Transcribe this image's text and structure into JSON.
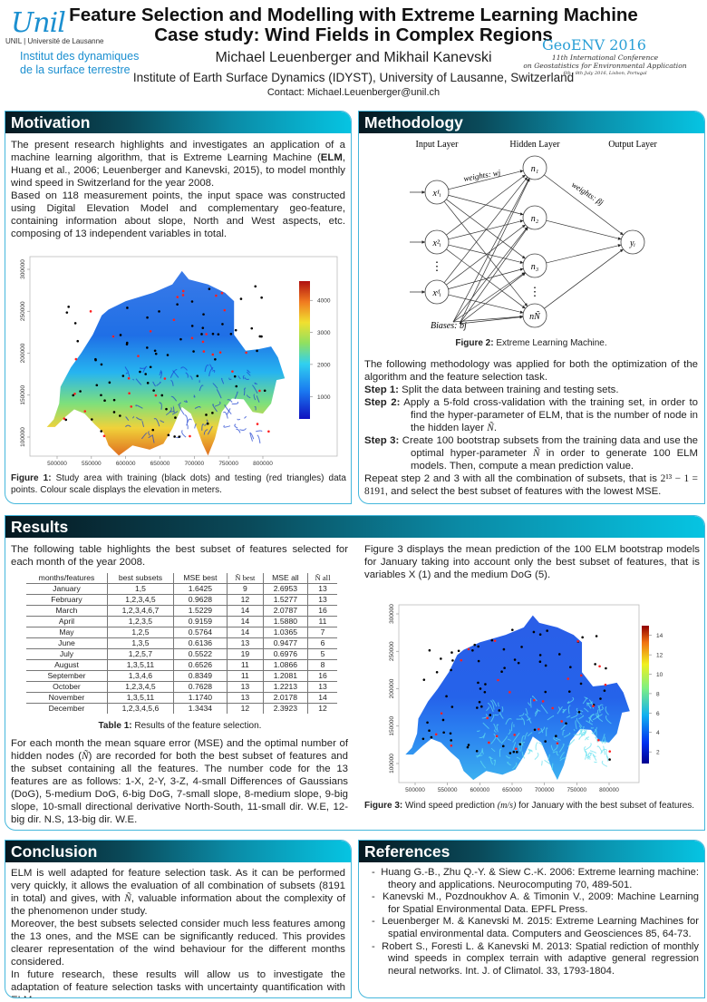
{
  "header": {
    "title_line1": "Feature Selection and Modelling with Extreme Learning Machine",
    "title_line2": "Case study: Wind Fields in Complex Regions",
    "authors": "Michael Leuenberger and Mikhail Kanevski",
    "affiliation": "Institute of Earth Surface Dynamics (IDYST), University of Lausanne, Switzerland",
    "contact": "Contact:  Michael.Leuenberger@unil.ch",
    "logo_left": {
      "wordmark": "Unil",
      "subline": "UNIL | Université de Lausanne",
      "institute_line1": "Institut des dynamiques",
      "institute_line2": "de la surface terrestre"
    },
    "logo_right": {
      "title": "GeoENV 2016",
      "line1": "11th International Conference",
      "line2": "on Geostatistics for Environmental Application",
      "dates": "6th - 8th July 2016, Lisbon, Portugal"
    }
  },
  "colors": {
    "header_gradient_start": "#061820",
    "header_gradient_end": "#06c4e2",
    "box_border": "#45b7dc",
    "institute_blue": "#1b8fd0",
    "train_points": "#000000",
    "test_points": "#ff2020"
  },
  "motivation": {
    "title": "Motivation",
    "p1_a": "The present research highlights and investigates an application of a machine learning algorithm, that is Extreme Learning Machine (",
    "p1_bold": "ELM",
    "p1_b": ", Huang et al., 2006; Leuenberger and Kanevski, 2015), to model monthly wind speed in Switzerland for the year 2008.",
    "p2": "Based on 118 measurement points, the input space was constructed using Digital Elevation Model and complementary geo-feature, containing information about slope, North and West aspects, etc. composing of 13 independent variables in total.",
    "figure": {
      "x_ticks": [
        "500000",
        "550000",
        "600000",
        "650000",
        "700000",
        "750000",
        "800000"
      ],
      "y_ticks": [
        "100000",
        "150000",
        "200000",
        "250000",
        "300000"
      ],
      "colorbar_ticks": [
        "1000",
        "2000",
        "3000",
        "4000"
      ],
      "colorbar_range": [
        300,
        4600
      ]
    },
    "caption_label": "Figure 1:",
    "caption_text": " Study area with training (black dots) and testing (red triangles) data points. Colour scale displays the elevation in meters."
  },
  "methodology": {
    "title": "Methodology",
    "diagram": {
      "input_layer": "Input Layer",
      "hidden_layer": "Hidden Layer",
      "output_layer": "Output Layer",
      "weights_w": "weights: wj",
      "weights_beta": "weights: βj",
      "biases": "Biases: bj",
      "inputs": [
        "x¹ᵢ",
        "x²ᵢ",
        "xᵈᵢ"
      ],
      "hidden": [
        "n₁",
        "n₂",
        "n₃",
        "nÑ"
      ],
      "output": "yᵢ",
      "ellipsis": "⋮"
    },
    "caption_label": "Figure 2:",
    "caption_text": " Extreme Learning Machine.",
    "intro": "The following methodology was applied for both the optimization of the algorithm and the feature selection task.",
    "steps": [
      {
        "label": "Step 1:",
        "text": " Split the data between training and testing sets."
      },
      {
        "label": "Step 2:",
        "text": " Apply a 5-fold cross-validation with the training set, in order to find the hyper-parameter of ELM, that is the number of node in the hidden layer ",
        "math": "Ñ",
        "tail": "."
      },
      {
        "label": "Step 3:",
        "text": " Create 100 bootstrap subsets from the training data and use the optimal hyper-parameter ",
        "math": "Ñ",
        "tail": " in order to generate 100 ELM models. Then, compute a mean prediction value."
      }
    ],
    "outro_a": "Repeat step 2 and 3 with all the combination of subsets, that is ",
    "outro_math": "2¹³ − 1 = 8191",
    "outro_b": ", and select the best subset of features with the lowest MSE."
  },
  "results": {
    "title": "Results",
    "intro": "The following table highlights the best subset of features selected for each month of the year 2008.",
    "table": {
      "headers": [
        "months/features",
        "best subsets",
        "MSE best",
        "Ñ best",
        "MSE all",
        "Ñ all"
      ],
      "rows": [
        [
          "January",
          "1,5",
          "1.6425",
          "9",
          "2.6953",
          "13"
        ],
        [
          "February",
          "1,2,3,4,5",
          "0.9628",
          "12",
          "1.5277",
          "13"
        ],
        [
          "March",
          "1,2,3,4,6,7",
          "1.5229",
          "14",
          "2.0787",
          "16"
        ],
        [
          "April",
          "1,2,3,5",
          "0.9159",
          "14",
          "1.5880",
          "11"
        ],
        [
          "May",
          "1,2,5",
          "0.5764",
          "14",
          "1.0365",
          "7"
        ],
        [
          "June",
          "1,3,5",
          "0.6136",
          "13",
          "0.9477",
          "6"
        ],
        [
          "July",
          "1,2,5,7",
          "0.5522",
          "19",
          "0.6976",
          "5"
        ],
        [
          "August",
          "1,3,5,11",
          "0.6526",
          "11",
          "1.0866",
          "8"
        ],
        [
          "September",
          "1,3,4,6",
          "0.8349",
          "11",
          "1.2081",
          "16"
        ],
        [
          "October",
          "1,2,3,4,5",
          "0.7628",
          "13",
          "1.2213",
          "13"
        ],
        [
          "November",
          "1,3,5,11",
          "1.1740",
          "13",
          "2.0178",
          "14"
        ],
        [
          "December",
          "1,2,3,4,5,6",
          "1.3434",
          "12",
          "2.3923",
          "12"
        ]
      ]
    },
    "table_caption_label": "Table 1:",
    "table_caption_text": " Results of the feature selection.",
    "para_a": "For each month the mean square error (MSE) and the optimal number of hidden nodes (",
    "para_math": "Ñ",
    "para_b": ") are recorded for both the best subset of features and the subset containing all the features. The number code for the 13 features are as follows: 1-X, 2-Y, 3-Z, 4-small Differences of Gaussians (DoG), 5-medium DoG, 6-big DoG, 7-small slope, 8-medium slope, 9-big slope, 10-small directional derivative North-South, 11-small dir. W.E, 12-big dir. N.S, 13-big dir. W.E.",
    "right_intro": "Figure 3 displays the mean prediction of the 100 ELM bootstrap models for January taking into account only the best subset of features, that is variables X (1) and the medium DoG (5).",
    "figure": {
      "x_ticks": [
        "500000",
        "550000",
        "600000",
        "650000",
        "700000",
        "750000",
        "800000"
      ],
      "y_ticks": [
        "100000",
        "150000",
        "200000",
        "250000",
        "300000"
      ],
      "colorbar_ticks": [
        "2",
        "4",
        "6",
        "8",
        "10",
        "12",
        "14"
      ],
      "colorbar_range": [
        0.8,
        15
      ]
    },
    "fig_caption_label": "Figure 3:",
    "fig_caption_a": " Wind speed prediction ",
    "fig_caption_math": "(m/s)",
    "fig_caption_b": " for January with the best subset of features."
  },
  "conclusion": {
    "title": "Conclusion",
    "p1_a": "ELM is well adapted for feature selection task.  As it can be performed very quickly, it allows the evaluation of all combination of subsets (8191 in total) and gives, with ",
    "p1_math": "Ñ",
    "p1_b": ", valuable information about the complexity of the phenomenon under study.",
    "p2": "Moreover, the best subsets selected consider much less features among the 13 ones, and the MSE can be significantly reduced.  This provides clearer representation of the wind behaviour for the different months considered.",
    "p3": "In future research, these results will allow us to investigate the adaptation of feature selection tasks with uncertainty quantification with ELM."
  },
  "references": {
    "title": "References",
    "items": [
      "Huang G.-B., Zhu Q.-Y. & Siew C.-K. 2006: Extreme learning machine: theory and applications. Neurocomputing 70, 489-501.",
      "Kanevski M., Pozdnoukhov A. & Timonin V., 2009: Machine Learning for Spatial Environmental Data. EPFL Press.",
      "Leuenberger M. & Kanevski M. 2015: Extreme Learning Machines for spatial environmental data.  Computers and Geosciences 85, 64-73.",
      "Robert S., Foresti L. & Kanevski M. 2013: Spatial rediction of monthly wind speeds in complex terrain with adaptive general regression neural networks. Int. J. of Climatol. 33, 1793-1804."
    ]
  }
}
